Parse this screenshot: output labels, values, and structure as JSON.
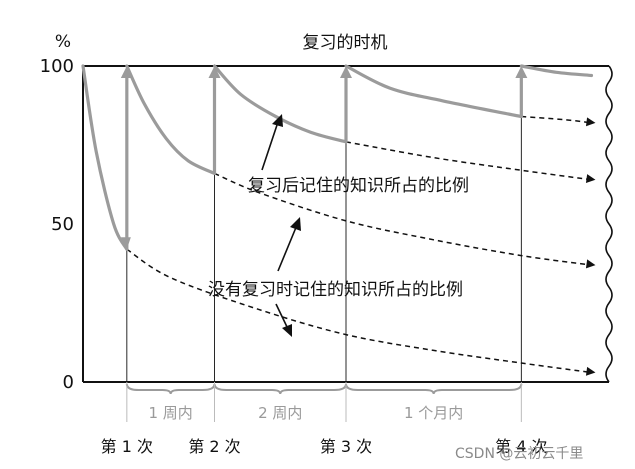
{
  "chart_data": {
    "type": "line",
    "title": "复习的时机",
    "ylabel": "%",
    "ylim": [
      0,
      100
    ],
    "yticks": [
      "100",
      "50",
      "0"
    ],
    "review_labels": [
      "第 1 次",
      "第 2 次",
      "第 3 次",
      "第 4 次"
    ],
    "interval_labels": [
      "1 周内",
      "2 周内",
      "1 个月内"
    ],
    "annotations": {
      "with_review": "复习后记住的知识所占的比例",
      "without_review": "没有复习时记住的知识所占的比例"
    },
    "series": [
      {
        "name": "复习后记住的知识所占的比例",
        "style": "solid",
        "color": "#9b9b9b",
        "points": [
          {
            "x": 0,
            "y": 100
          },
          {
            "x": 0.15,
            "y": 73
          },
          {
            "x": 0.35,
            "y": 50
          },
          {
            "x": 0.5,
            "y": 42
          },
          {
            "x": 0.5,
            "y": 100
          },
          {
            "x": 0.7,
            "y": 88
          },
          {
            "x": 0.95,
            "y": 77
          },
          {
            "x": 1.2,
            "y": 70
          },
          {
            "x": 1.5,
            "y": 66
          },
          {
            "x": 1.5,
            "y": 100
          },
          {
            "x": 1.8,
            "y": 91
          },
          {
            "x": 2.2,
            "y": 84
          },
          {
            "x": 2.6,
            "y": 79
          },
          {
            "x": 3.0,
            "y": 76
          },
          {
            "x": 3.0,
            "y": 100
          },
          {
            "x": 3.5,
            "y": 93
          },
          {
            "x": 4.1,
            "y": 89
          },
          {
            "x": 5.0,
            "y": 84
          },
          {
            "x": 5.0,
            "y": 100
          },
          {
            "x": 5.4,
            "y": 98
          },
          {
            "x": 5.8,
            "y": 97
          }
        ]
      },
      {
        "name": "",
        "style": "dashed",
        "color": "#111111",
        "curves": [
          [
            {
              "x": 0.5,
              "y": 42
            },
            {
              "x": 1.0,
              "y": 33
            },
            {
              "x": 2.0,
              "y": 23
            },
            {
              "x": 3.0,
              "y": 15
            },
            {
              "x": 4.0,
              "y": 10
            },
            {
              "x": 5.0,
              "y": 6
            },
            {
              "x": 5.8,
              "y": 3
            }
          ],
          [
            {
              "x": 1.5,
              "y": 66
            },
            {
              "x": 2.0,
              "y": 60
            },
            {
              "x": 3.0,
              "y": 51
            },
            {
              "x": 4.0,
              "y": 45
            },
            {
              "x": 5.0,
              "y": 40
            },
            {
              "x": 5.8,
              "y": 37
            }
          ],
          [
            {
              "x": 3.0,
              "y": 76
            },
            {
              "x": 4.0,
              "y": 71
            },
            {
              "x": 5.0,
              "y": 67
            },
            {
              "x": 5.8,
              "y": 64
            }
          ],
          [
            {
              "x": 5.0,
              "y": 84
            },
            {
              "x": 5.5,
              "y": 83
            },
            {
              "x": 5.8,
              "y": 82
            }
          ]
        ]
      }
    ],
    "grid": false
  },
  "watermark": "CSDN @云初云千里"
}
